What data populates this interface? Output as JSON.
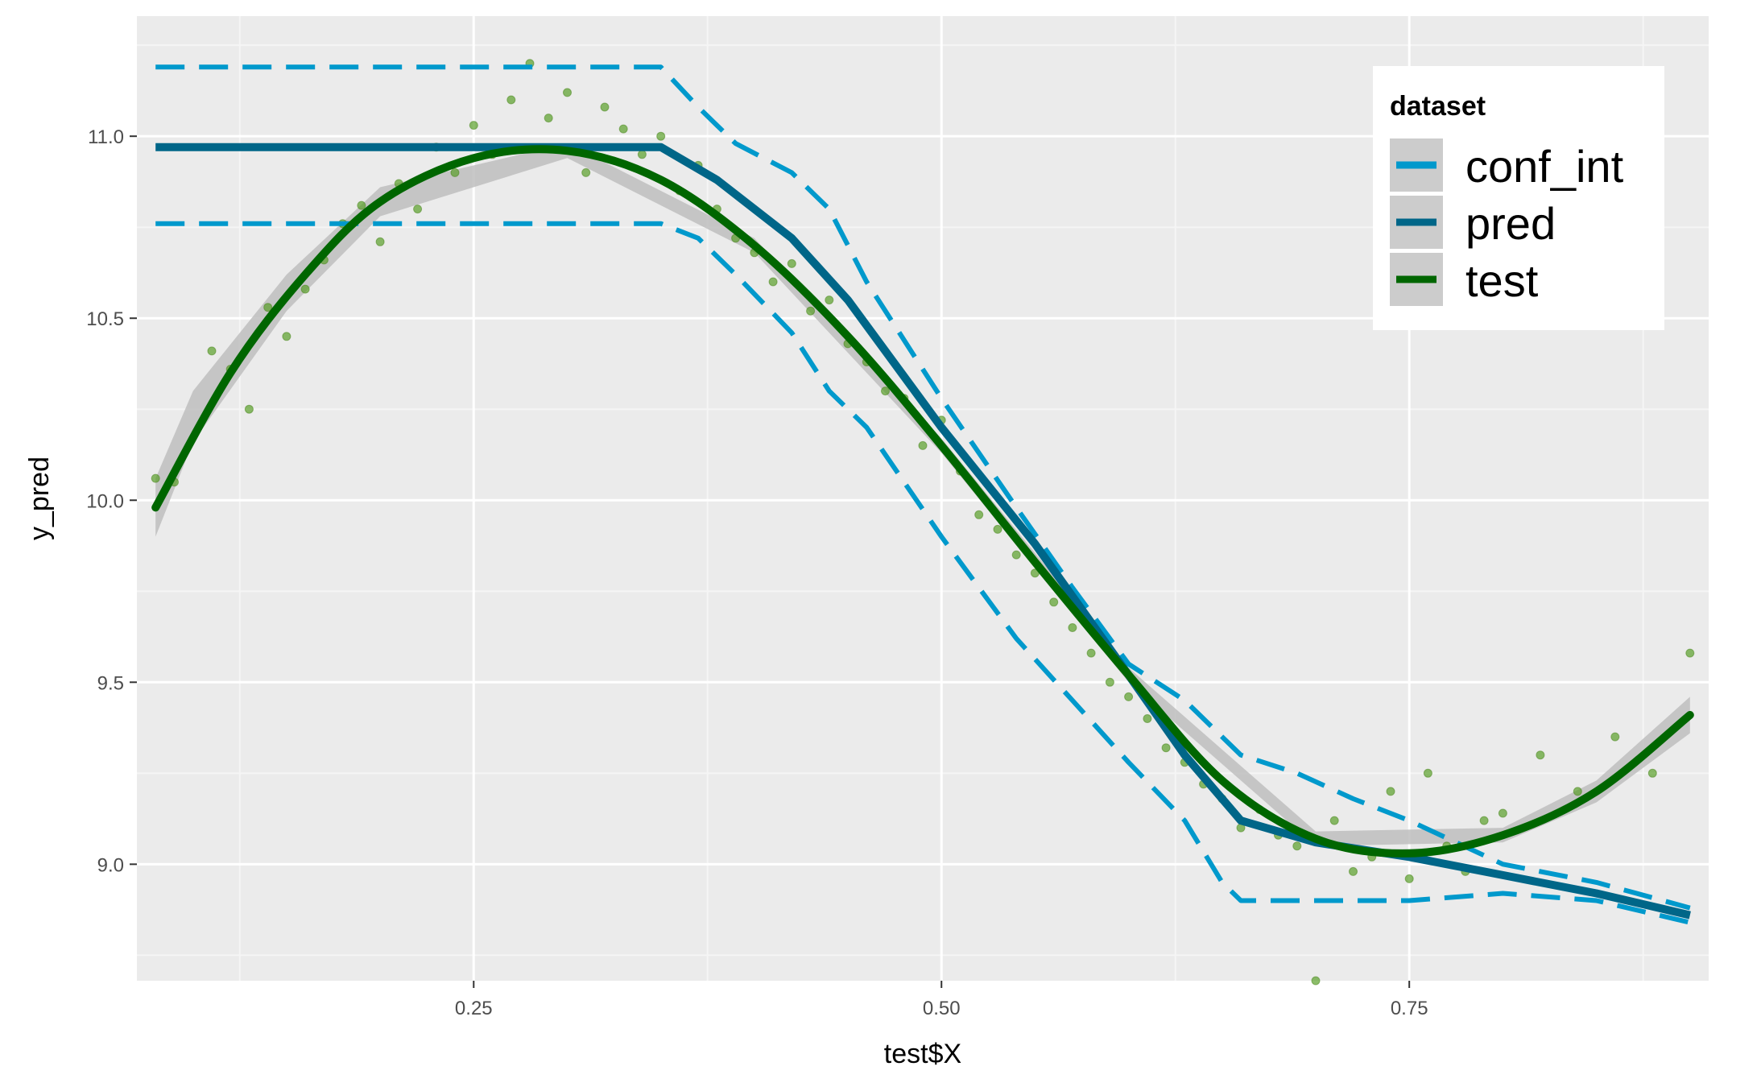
{
  "chart_data": {
    "type": "line",
    "title": "",
    "xlabel": "test$X",
    "ylabel": "y_pred",
    "xlim": [
      0.07,
      0.91
    ],
    "ylim": [
      8.68,
      11.33
    ],
    "x_ticks": [
      0.25,
      0.5,
      0.75
    ],
    "x_tick_labels": [
      "0.25",
      "0.50",
      "0.75"
    ],
    "y_ticks": [
      9.0,
      9.5,
      10.0,
      10.5,
      11.0
    ],
    "y_tick_labels": [
      "9.0",
      "9.5",
      "10.0",
      "10.5",
      "11.0"
    ],
    "grid": true,
    "legend": {
      "title": "dataset",
      "position": "top-right",
      "entries": [
        "conf_int",
        "pred",
        "test"
      ]
    },
    "colors": {
      "conf_int": "#0099cc",
      "pred": "#006688",
      "test": "#006600",
      "points": "#4f9a1a",
      "ribbon": "#bebebe",
      "panel": "#ebebeb"
    },
    "series": [
      {
        "name": "pred",
        "style": "solid",
        "x": [
          0.08,
          0.35,
          0.38,
          0.42,
          0.45,
          0.5,
          0.55,
          0.6,
          0.63,
          0.66,
          0.7,
          0.75,
          0.8,
          0.85,
          0.9
        ],
        "y": [
          10.97,
          10.97,
          10.88,
          10.72,
          10.55,
          10.2,
          9.88,
          9.52,
          9.3,
          9.12,
          9.06,
          9.02,
          8.97,
          8.92,
          8.86
        ]
      },
      {
        "name": "conf_int",
        "style": "dashed",
        "x": [
          0.08,
          0.35,
          0.37,
          0.39,
          0.42,
          0.44,
          0.46,
          0.5,
          0.54,
          0.57,
          0.6,
          0.63,
          0.66,
          0.69,
          0.72,
          0.75,
          0.8,
          0.85,
          0.9
        ],
        "y": [
          11.19,
          11.19,
          11.08,
          10.98,
          10.9,
          10.8,
          10.6,
          10.28,
          9.98,
          9.76,
          9.55,
          9.45,
          9.3,
          9.25,
          9.18,
          9.12,
          9.0,
          8.95,
          8.88
        ]
      },
      {
        "name": "conf_int",
        "style": "dashed",
        "x": [
          0.08,
          0.35,
          0.37,
          0.39,
          0.42,
          0.44,
          0.46,
          0.5,
          0.54,
          0.57,
          0.6,
          0.63,
          0.65,
          0.66,
          0.7,
          0.75,
          0.8,
          0.85,
          0.9
        ],
        "y": [
          10.76,
          10.76,
          10.72,
          10.62,
          10.46,
          10.3,
          10.2,
          9.9,
          9.62,
          9.45,
          9.28,
          9.12,
          8.95,
          8.9,
          8.9,
          8.9,
          8.92,
          8.9,
          8.84
        ]
      },
      {
        "name": "test",
        "style": "smooth",
        "x": [
          0.08,
          0.12,
          0.16,
          0.2,
          0.25,
          0.3,
          0.35,
          0.4,
          0.45,
          0.5,
          0.55,
          0.6,
          0.65,
          0.7,
          0.75,
          0.8,
          0.85,
          0.9
        ],
        "y": [
          9.98,
          10.35,
          10.62,
          10.82,
          10.94,
          10.96,
          10.88,
          10.7,
          10.45,
          10.15,
          9.83,
          9.52,
          9.23,
          9.07,
          9.03,
          9.08,
          9.2,
          9.41
        ]
      }
    ],
    "scatter": {
      "name": "test",
      "x": [
        0.08,
        0.09,
        0.11,
        0.12,
        0.13,
        0.14,
        0.15,
        0.16,
        0.17,
        0.18,
        0.19,
        0.2,
        0.21,
        0.22,
        0.23,
        0.24,
        0.25,
        0.26,
        0.27,
        0.28,
        0.29,
        0.3,
        0.31,
        0.32,
        0.33,
        0.34,
        0.35,
        0.36,
        0.37,
        0.38,
        0.39,
        0.4,
        0.41,
        0.42,
        0.43,
        0.44,
        0.45,
        0.46,
        0.47,
        0.48,
        0.49,
        0.5,
        0.51,
        0.52,
        0.53,
        0.54,
        0.55,
        0.56,
        0.57,
        0.58,
        0.59,
        0.6,
        0.61,
        0.62,
        0.63,
        0.64,
        0.65,
        0.66,
        0.67,
        0.68,
        0.69,
        0.7,
        0.71,
        0.72,
        0.73,
        0.74,
        0.75,
        0.76,
        0.77,
        0.78,
        0.79,
        0.8,
        0.82,
        0.84,
        0.86,
        0.88,
        0.9
      ],
      "y": [
        10.06,
        10.05,
        10.41,
        10.36,
        10.25,
        10.53,
        10.45,
        10.58,
        10.66,
        10.76,
        10.81,
        10.71,
        10.87,
        10.8,
        10.97,
        10.9,
        11.03,
        10.95,
        11.1,
        11.2,
        11.05,
        11.12,
        10.9,
        11.08,
        11.02,
        10.95,
        11.0,
        10.85,
        10.92,
        10.8,
        10.72,
        10.68,
        10.6,
        10.65,
        10.52,
        10.55,
        10.43,
        10.38,
        10.3,
        10.28,
        10.15,
        10.22,
        10.08,
        9.96,
        9.92,
        9.85,
        9.8,
        9.72,
        9.65,
        9.58,
        9.5,
        9.46,
        9.4,
        9.32,
        9.28,
        9.22,
        9.18,
        9.1,
        9.15,
        9.08,
        9.05,
        8.68,
        9.12,
        8.98,
        9.02,
        9.2,
        8.96,
        9.25,
        9.05,
        8.98,
        9.12,
        9.14,
        9.3,
        9.2,
        9.35,
        9.25,
        9.58
      ]
    },
    "ribbon": {
      "x": [
        0.08,
        0.1,
        0.15,
        0.2,
        0.3,
        0.4,
        0.5,
        0.6,
        0.7,
        0.8,
        0.85,
        0.9
      ],
      "lower": [
        9.9,
        10.16,
        10.52,
        10.78,
        10.94,
        10.68,
        10.13,
        9.5,
        9.05,
        9.06,
        9.17,
        9.36
      ],
      "upper": [
        10.06,
        10.3,
        10.62,
        10.86,
        10.98,
        10.72,
        10.17,
        9.54,
        9.09,
        9.1,
        9.23,
        9.46
      ]
    }
  }
}
